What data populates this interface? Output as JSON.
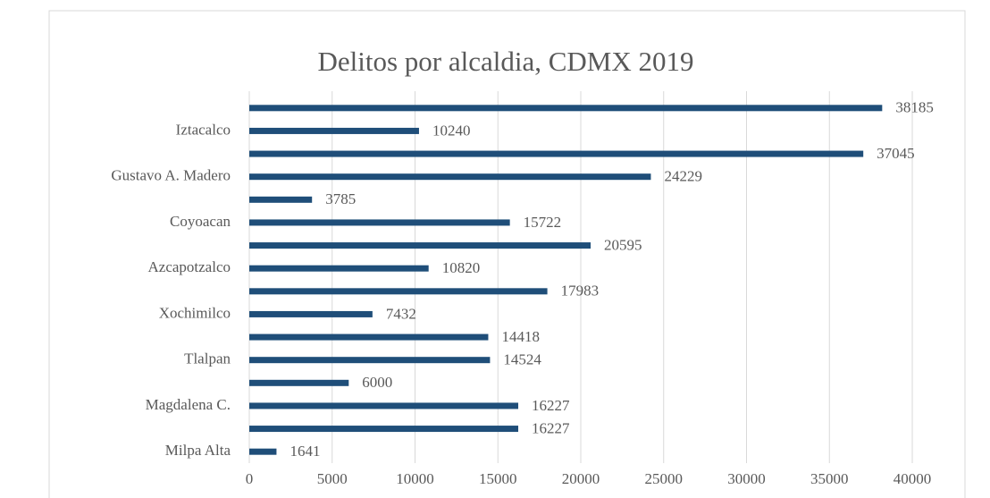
{
  "chart_data": {
    "type": "barh",
    "title": "Delitos por alcaldia, CDMX 2019",
    "categories": [
      null,
      "Iztacalco",
      null,
      "Gustavo A. Madero",
      null,
      "Coyoacan ",
      null,
      "Azcapotzalco",
      null,
      "Xochimilco",
      null,
      "Tlalpan",
      null,
      "Magdalena C.",
      null,
      "Milpa Alta"
    ],
    "values": [
      38185,
      10240,
      37045,
      24229,
      3785,
      15722,
      20595,
      10820,
      17983,
      7432,
      14418,
      14524,
      6000,
      16227,
      16227,
      1641
    ],
    "color": "#1f4e79",
    "xlim": [
      0,
      40000
    ],
    "xticks": [
      0,
      5000,
      10000,
      15000,
      20000,
      25000,
      30000,
      35000,
      40000
    ],
    "grid": true
  }
}
